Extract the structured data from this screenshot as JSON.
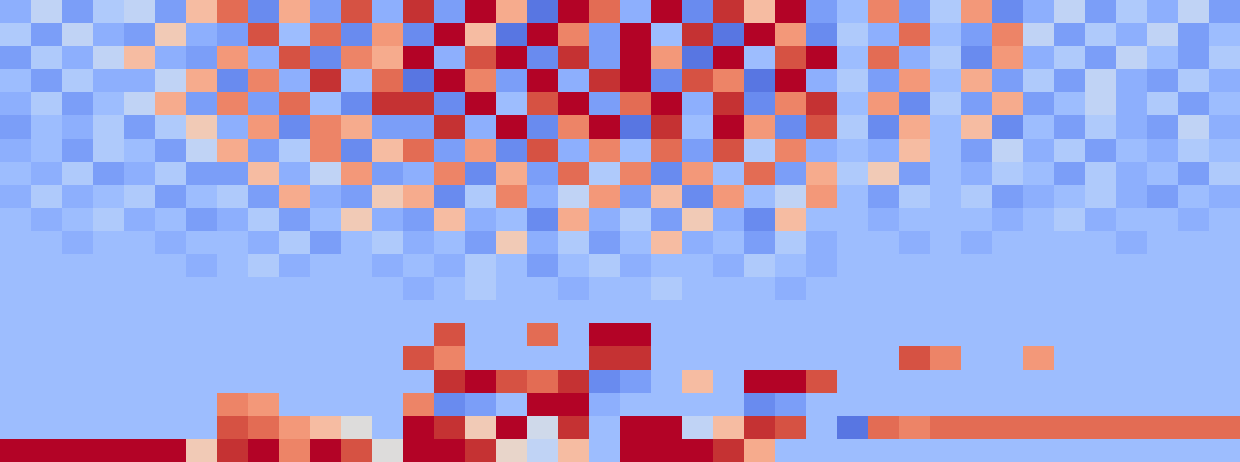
{
  "chart_data": {
    "type": "heatmap",
    "color": "coolwarm",
    "tick_labels": false,
    "zlim": [
      -10,
      10
    ],
    "cells": [
      [
        -5,
        -2,
        -6,
        -3,
        -2,
        -6,
        3,
        7,
        -7,
        4,
        -6,
        8,
        -5,
        9,
        -6,
        10,
        4,
        -8,
        10,
        7,
        -5,
        10,
        -7,
        9,
        3,
        10,
        -6,
        -4,
        6,
        -6,
        -3,
        5,
        -7,
        -5,
        -2,
        -6,
        -3,
        -5,
        -2,
        -6
      ],
      [
        -3,
        -6,
        -2,
        -5,
        -6,
        2,
        -5,
        -6,
        8,
        -4,
        7,
        -7,
        5,
        -7,
        10,
        3,
        -8,
        10,
        6,
        -6,
        10,
        -4,
        9,
        -8,
        10,
        5,
        -7,
        -3,
        -5,
        7,
        -4,
        -6,
        6,
        -2,
        -6,
        -3,
        -5,
        -2,
        -6,
        -4
      ],
      [
        -6,
        -3,
        -5,
        -2,
        3,
        -5,
        -6,
        5,
        -5,
        8,
        -7,
        6,
        4,
        10,
        -5,
        8,
        10,
        -7,
        9,
        -6,
        10,
        5,
        -8,
        10,
        -4,
        8,
        10,
        -4,
        7,
        -5,
        -3,
        -7,
        5,
        -5,
        -3,
        -6,
        -2,
        -4,
        -6,
        -3
      ],
      [
        -4,
        -6,
        -3,
        -5,
        -5,
        -2,
        4,
        -7,
        6,
        -5,
        9,
        -4,
        7,
        -8,
        10,
        6,
        -6,
        10,
        -5,
        9,
        10,
        -7,
        8,
        6,
        -8,
        10,
        -5,
        -3,
        -6,
        5,
        -4,
        4,
        -6,
        -3,
        -6,
        -2,
        -5,
        -6,
        -3,
        -5
      ],
      [
        -5,
        -3,
        -6,
        -4,
        -2,
        4,
        -6,
        6,
        -6,
        7,
        -4,
        -7,
        9,
        9,
        -7,
        10,
        -4,
        8,
        10,
        -6,
        7,
        10,
        -5,
        9,
        -7,
        6,
        9,
        -4,
        5,
        -7,
        -3,
        -6,
        4,
        -6,
        -4,
        -2,
        -5,
        -3,
        -6,
        -4
      ],
      [
        -6,
        -4,
        -5,
        -3,
        -6,
        -3,
        2,
        -5,
        5,
        -7,
        6,
        4,
        -6,
        -6,
        9,
        -5,
        10,
        -7,
        6,
        10,
        -8,
        9,
        -4,
        10,
        5,
        -7,
        8,
        -3,
        -7,
        4,
        -4,
        3,
        -7,
        -4,
        -6,
        -3,
        -5,
        -6,
        -2,
        -5
      ],
      [
        -5,
        -4,
        -6,
        -3,
        -4,
        -6,
        -2,
        4,
        -6,
        -3,
        6,
        -7,
        3,
        7,
        -6,
        5,
        -7,
        8,
        -5,
        6,
        -4,
        7,
        -6,
        8,
        -3,
        6,
        -5,
        -4,
        -5,
        3,
        -4,
        -6,
        -2,
        -5,
        -3,
        -6,
        -4,
        -5,
        -3,
        -4
      ],
      [
        -4,
        -5,
        -3,
        -6,
        -5,
        -3,
        -6,
        -6,
        3,
        -5,
        -2,
        5,
        -6,
        -5,
        6,
        -7,
        4,
        -6,
        7,
        -3,
        6,
        -7,
        5,
        -4,
        7,
        -6,
        4,
        -3,
        2,
        -6,
        -4,
        -5,
        -3,
        -4,
        -6,
        -3,
        -5,
        -4,
        -6,
        -3
      ],
      [
        -5,
        -3,
        -5,
        -4,
        -3,
        -6,
        -4,
        -3,
        -6,
        4,
        -5,
        -6,
        2,
        4,
        -7,
        -3,
        6,
        -5,
        -2,
        5,
        -6,
        3,
        -7,
        5,
        -4,
        -2,
        5,
        -4,
        -6,
        -3,
        -4,
        -3,
        -6,
        -5,
        -4,
        -3,
        -5,
        -6,
        -4,
        -5
      ],
      [
        -4,
        -5,
        -4,
        -3,
        -5,
        -4,
        -6,
        -5,
        -3,
        -6,
        -4,
        2,
        -5,
        -6,
        3,
        -5,
        -4,
        -7,
        4,
        -5,
        -3,
        -6,
        2,
        -5,
        -7,
        3,
        -4,
        -4,
        -5,
        -4,
        -4,
        -4,
        -5,
        -4,
        -3,
        -5,
        -4,
        -4,
        -5,
        -4
      ],
      [
        -4,
        -4,
        -5,
        -4,
        -4,
        -5,
        -4,
        -4,
        -5,
        -3,
        -6,
        -4,
        -3,
        -5,
        -4,
        -6,
        2,
        -5,
        -3,
        -6,
        -4,
        3,
        -5,
        -4,
        -6,
        -3,
        -5,
        -4,
        -4,
        -5,
        -4,
        -5,
        -4,
        -4,
        -4,
        -4,
        -5,
        -4,
        -4,
        -4
      ],
      [
        -4,
        -4,
        -4,
        -4,
        -4,
        -4,
        -5,
        -4,
        -3,
        -5,
        -4,
        -4,
        -5,
        -4,
        -5,
        -3,
        -4,
        -6,
        -4,
        -3,
        -5,
        -4,
        -4,
        -5,
        -3,
        -4,
        -5,
        -4,
        -4,
        -4,
        -4,
        -4,
        -4,
        -4,
        -4,
        -4,
        -4,
        -4,
        -4,
        -4
      ],
      [
        -4,
        -4,
        -4,
        -4,
        -4,
        -4,
        -4,
        -4,
        -4,
        -4,
        -4,
        -4,
        -4,
        -5,
        -4,
        -3,
        -4,
        -4,
        -5,
        -4,
        -4,
        -3,
        -4,
        -4,
        -4,
        -5,
        -4,
        -4,
        -4,
        -4,
        -4,
        -4,
        -4,
        -4,
        -4,
        -4,
        -4,
        -4,
        -4,
        -4
      ],
      [
        -4,
        -4,
        -4,
        -4,
        -4,
        -4,
        -4,
        -4,
        -4,
        -4,
        -4,
        -4,
        -4,
        -4,
        -4,
        -4,
        -4,
        -4,
        -4,
        -4,
        -4,
        -4,
        -4,
        -4,
        -4,
        -4,
        -4,
        -4,
        -4,
        -4,
        -4,
        -4,
        -4,
        -4,
        -4,
        -4,
        -4,
        -4,
        -4,
        -4
      ],
      [
        -4,
        -4,
        -4,
        -4,
        -4,
        -4,
        -4,
        -4,
        -4,
        -4,
        -4,
        -4,
        -4,
        -4,
        8,
        -4,
        -4,
        7,
        -4,
        10,
        10,
        -4,
        -4,
        -4,
        -4,
        -4,
        -4,
        -4,
        -4,
        -4,
        -4,
        -4,
        -4,
        -4,
        -4,
        -4,
        -4,
        -4,
        -4,
        -4
      ],
      [
        -4,
        -4,
        -4,
        -4,
        -4,
        -4,
        -4,
        -4,
        -4,
        -4,
        -4,
        -4,
        -4,
        8,
        6,
        -4,
        -4,
        -4,
        -4,
        9,
        9,
        -4,
        -4,
        -4,
        -4,
        -4,
        -4,
        -4,
        -4,
        8,
        6,
        -4,
        -4,
        5,
        -4,
        -4,
        -4,
        -4,
        -4,
        -4
      ],
      [
        -4,
        -4,
        -4,
        -4,
        -4,
        -4,
        -4,
        -4,
        -4,
        -4,
        -4,
        -4,
        -4,
        -4,
        9,
        10,
        8,
        7,
        9,
        -7,
        -6,
        -4,
        3,
        -4,
        10,
        10,
        8,
        -4,
        -4,
        -4,
        -4,
        -4,
        -4,
        -4,
        -4,
        -4,
        -4,
        -4,
        -4,
        -4
      ],
      [
        -4,
        -4,
        -4,
        -4,
        -4,
        -4,
        -4,
        6,
        5,
        -4,
        -4,
        -4,
        -4,
        6,
        -7,
        -6,
        -4,
        10,
        10,
        -5,
        -4,
        -4,
        -4,
        -4,
        -7,
        -6,
        -4,
        -4,
        -4,
        -4,
        -4,
        -4,
        -4,
        -4,
        -4,
        -4,
        -4,
        -4,
        -4,
        -4
      ],
      [
        -4,
        -4,
        -4,
        -4,
        -4,
        -4,
        -4,
        8,
        7,
        5,
        3,
        0,
        -4,
        10,
        9,
        2,
        10,
        -1,
        9,
        -4,
        10,
        10,
        -2,
        3,
        9,
        8,
        -4,
        -8,
        7,
        6,
        7,
        7,
        7,
        7,
        7,
        7,
        7,
        7,
        7,
        7
      ],
      [
        10,
        10,
        10,
        10,
        10,
        10,
        2,
        9,
        10,
        6,
        10,
        8,
        0,
        10,
        10,
        9,
        1,
        -2,
        3,
        -4,
        10,
        10,
        10,
        9,
        4,
        -4,
        -4,
        -4,
        -4,
        -4,
        -4,
        -4,
        -4,
        -4,
        -4,
        -4,
        -4,
        -4,
        -4,
        -4
      ]
    ]
  }
}
